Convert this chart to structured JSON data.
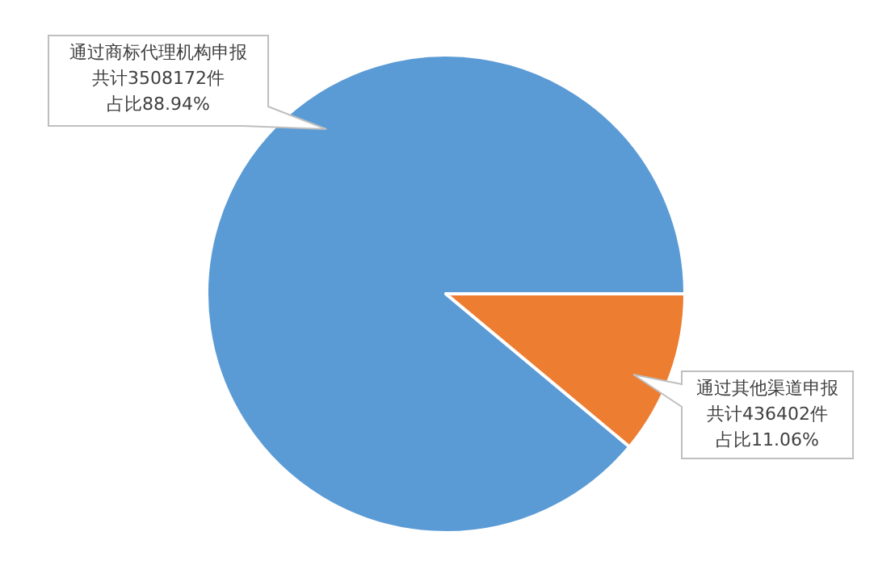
{
  "chart_data": {
    "type": "pie",
    "categories": [
      "通过商标代理机构申报",
      "通过其他渠道申报"
    ],
    "values": [
      88.94,
      11.06
    ],
    "colors": [
      "#5b9bd5",
      "#ed7d31"
    ],
    "value_labels": [
      [
        "共计3508172件",
        "占比88.94%"
      ],
      [
        "共计436402件",
        "占比11.06%"
      ]
    ],
    "legend": false
  }
}
